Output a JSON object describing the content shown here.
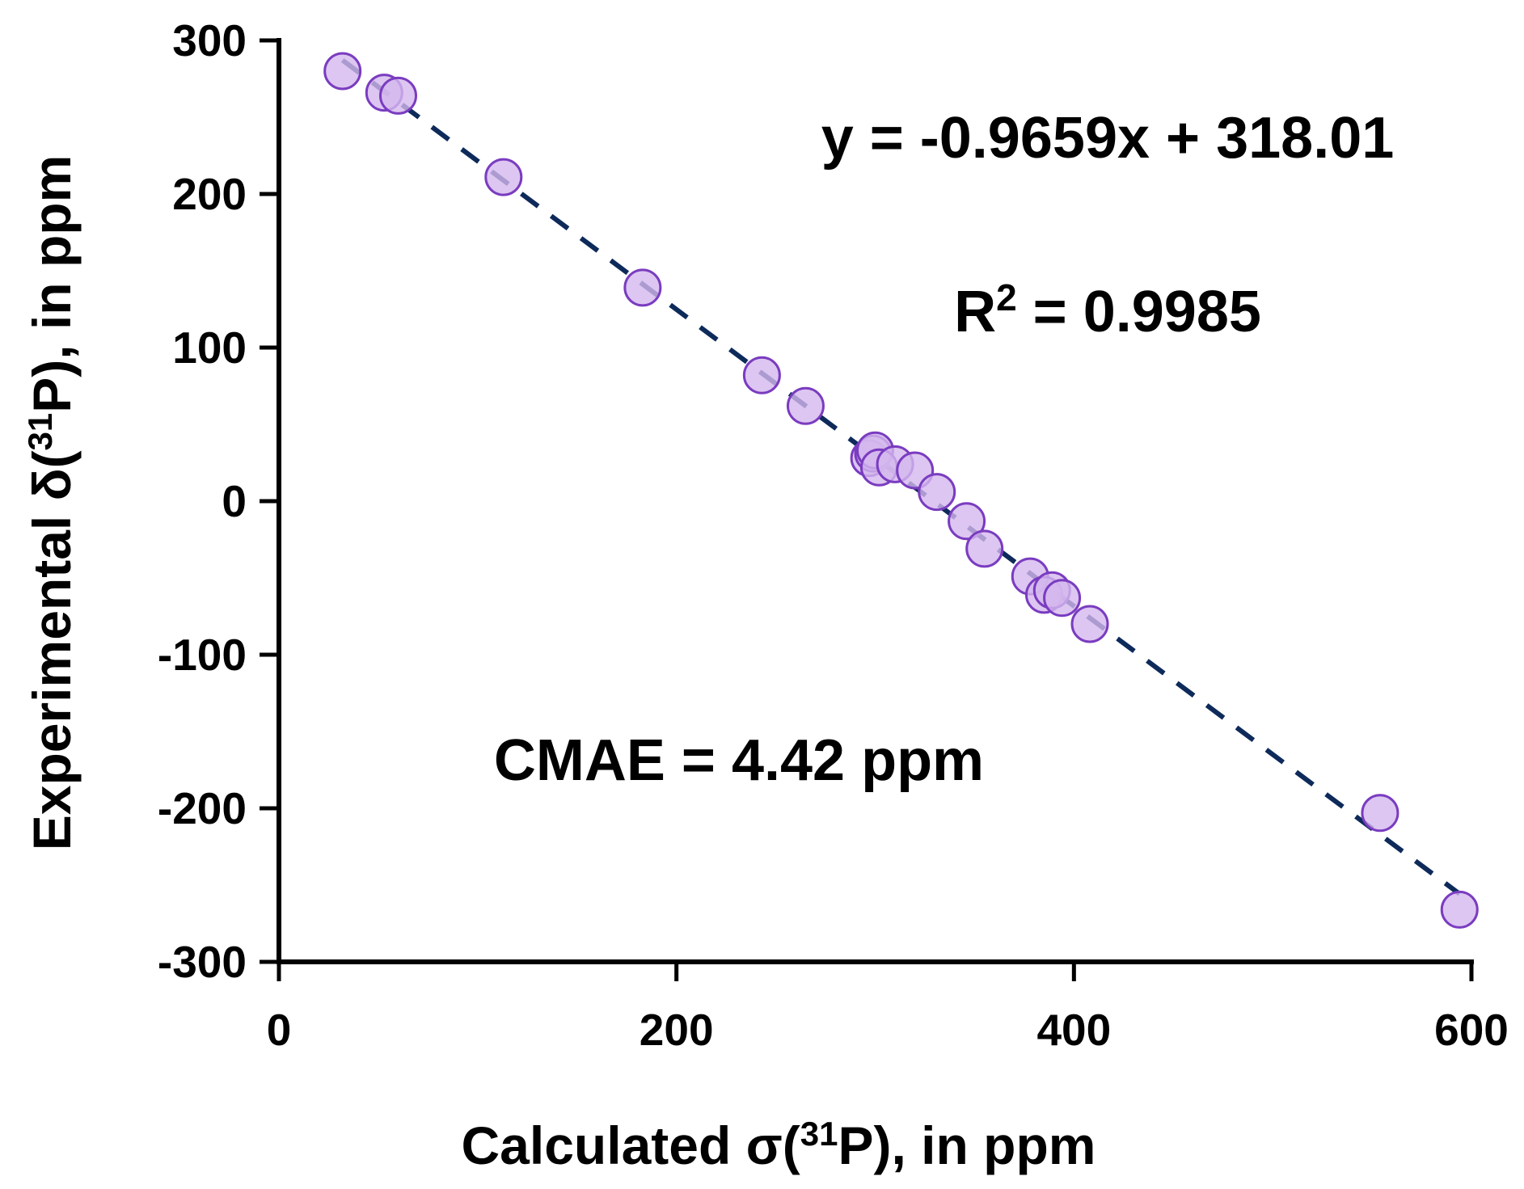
{
  "chart_data": {
    "type": "scatter",
    "title": "",
    "xlabel_parts": [
      {
        "text": "Calculated σ(",
        "sup": false
      },
      {
        "text": "31",
        "sup": true
      },
      {
        "text": "P), in ppm",
        "sup": false
      }
    ],
    "ylabel_parts": [
      {
        "text": "Experimental δ(",
        "sup": false
      },
      {
        "text": "31",
        "sup": true
      },
      {
        "text": "P), in ppm",
        "sup": false
      }
    ],
    "xlim": [
      0,
      600
    ],
    "ylim": [
      -300,
      300
    ],
    "xticks": [
      0,
      200,
      400,
      600
    ],
    "xtick_labels": [
      "0",
      "200",
      "400",
      "600"
    ],
    "yticks": [
      -300,
      -200,
      -100,
      0,
      100,
      200,
      300
    ],
    "ytick_labels": [
      "-300",
      "-200",
      "-100",
      "0",
      "100",
      "200",
      "300"
    ],
    "grid": false,
    "series": [
      {
        "name": "data",
        "marker": "circle",
        "color": "#d4b8ee",
        "edge_color": "#7a3cc0",
        "x": [
          32,
          53,
          60,
          113,
          183,
          243,
          265,
          297,
          299,
          300,
          302,
          310,
          320,
          331,
          346,
          355,
          378,
          385,
          389,
          394,
          408,
          554,
          594
        ],
        "y": [
          280,
          266,
          264,
          211,
          139,
          82,
          62,
          28,
          31,
          33,
          22,
          24,
          20,
          6,
          -13,
          -31,
          -49,
          -61,
          -58,
          -63,
          -80,
          -203,
          -266
        ]
      }
    ],
    "trendline": {
      "slope": -0.9659,
      "intercept": 318.01,
      "x_range": [
        32,
        594
      ],
      "style": "dashed",
      "color": "#0d2a5a"
    },
    "annotations": {
      "equation": "y = -0.9659x + 318.01",
      "r2_base": "R",
      "r2_sup": "2",
      "r2_rest": " = 0.9985",
      "cmae": "CMAE = 4.42 ppm"
    }
  }
}
